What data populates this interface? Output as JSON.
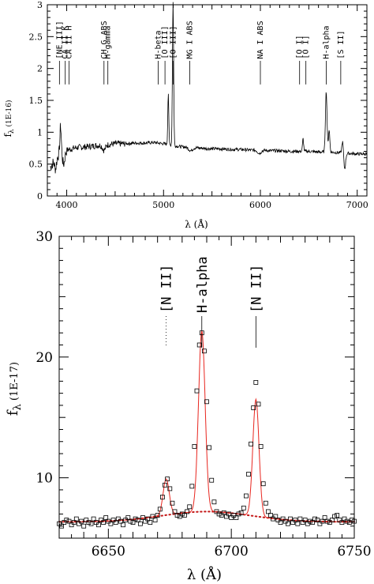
{
  "chart_data": [
    {
      "type": "line",
      "title": "",
      "xlabel": "λ (Å)",
      "ylabel": "f",
      "ylabel_sub": "λ",
      "ylabel_unit": "(1E-16)",
      "xlim": [
        3800,
        7100
      ],
      "ylim": [
        0,
        3
      ],
      "xticks": [
        4000,
        5000,
        6000,
        7000
      ],
      "yticks": [
        0,
        0.5,
        1,
        1.5,
        2,
        2.5,
        3
      ],
      "ytick_labels": [
        "0",
        "0.5",
        "1",
        "1.5",
        "2",
        "2.5",
        "3"
      ],
      "spectrum": {
        "continuum": [
          [
            3830,
            0.45
          ],
          [
            3870,
            0.55
          ],
          [
            3930,
            0.68
          ],
          [
            4000,
            0.72
          ],
          [
            4100,
            0.76
          ],
          [
            4200,
            0.77
          ],
          [
            4300,
            0.79
          ],
          [
            4400,
            0.8
          ],
          [
            4500,
            0.82
          ],
          [
            4600,
            0.82
          ],
          [
            4700,
            0.83
          ],
          [
            4800,
            0.83
          ],
          [
            4900,
            0.84
          ],
          [
            5000,
            0.82
          ],
          [
            5100,
            0.79
          ],
          [
            5200,
            0.77
          ],
          [
            5300,
            0.76
          ],
          [
            5400,
            0.75
          ],
          [
            5500,
            0.74
          ],
          [
            5600,
            0.74
          ],
          [
            5700,
            0.73
          ],
          [
            5800,
            0.73
          ],
          [
            5900,
            0.72
          ],
          [
            6000,
            0.72
          ],
          [
            6100,
            0.71
          ],
          [
            6200,
            0.71
          ],
          [
            6300,
            0.7
          ],
          [
            6400,
            0.7
          ],
          [
            6500,
            0.7
          ],
          [
            6600,
            0.69
          ],
          [
            6700,
            0.69
          ],
          [
            6800,
            0.68
          ],
          [
            6900,
            0.67
          ],
          [
            7000,
            0.66
          ],
          [
            7100,
            0.66
          ]
        ],
        "emission": [
          [
            3937,
            0.42,
            7
          ],
          [
            5049,
            0.82,
            5
          ],
          [
            5098,
            2.25,
            6
          ],
          [
            6441,
            0.2,
            6
          ],
          [
            6680,
            0.95,
            8
          ],
          [
            6710,
            0.35,
            7
          ],
          [
            6850,
            0.2,
            8
          ]
        ],
        "absorption": [
          [
            3885,
            0.15,
            10
          ],
          [
            3968,
            0.2,
            12
          ],
          [
            4385,
            0.08,
            15
          ],
          [
            5280,
            0.05,
            20
          ],
          [
            5990,
            0.05,
            18
          ],
          [
            6870,
            0.25,
            10
          ]
        ]
      },
      "line_ids": [
        {
          "label": "[NE III]",
          "x": 3925
        },
        {
          "label": "CA II K",
          "x": 3985
        },
        {
          "label": "CA II H",
          "x": 4025
        },
        {
          "label": "CH G ABS",
          "x": 4385
        },
        {
          "label": "H-gamma",
          "x": 4425
        },
        {
          "label": "H-beta",
          "x": 4945
        },
        {
          "label": "[O III]",
          "x": 5015
        },
        {
          "label": "[O III]",
          "x": 5100
        },
        {
          "label": "MG I ABS",
          "x": 5270
        },
        {
          "label": "NA I ABS",
          "x": 6000
        },
        {
          "label": "[O I]",
          "x": 6405
        },
        {
          "label": "[O I]",
          "x": 6470
        },
        {
          "label": "H-alpha",
          "x": 6680
        },
        {
          "label": "[S II]",
          "x": 6830
        }
      ]
    },
    {
      "type": "scatter",
      "title": "",
      "xlabel": "λ (Å)",
      "ylabel": "f",
      "ylabel_sub": "λ",
      "ylabel_unit": "(1E-17)",
      "xlim": [
        6630,
        6750
      ],
      "ylim": [
        5,
        30
      ],
      "xticks": [
        6650,
        6700,
        6750
      ],
      "yticks": [
        10,
        20,
        30
      ],
      "continuum_level": 6.35,
      "broad_component": {
        "center": 6690,
        "amplitude": 0.85,
        "sigma": 18
      },
      "fit_components": [
        {
          "name": "[N II]",
          "center": 6673.5,
          "amplitude": 3.0,
          "sigma": 1.25
        },
        {
          "name": "H-alpha",
          "center": 6688.0,
          "amplitude": 15.0,
          "sigma": 1.35
        },
        {
          "name": "[N II]",
          "center": 6710.0,
          "amplitude": 9.7,
          "sigma": 1.25
        }
      ],
      "points": [
        [
          6630,
          6.2
        ],
        [
          6631,
          6.0
        ],
        [
          6632,
          6.3
        ],
        [
          6633,
          6.5
        ],
        [
          6634,
          6.4
        ],
        [
          6635,
          6.1
        ],
        [
          6636,
          6.3
        ],
        [
          6637,
          6.6
        ],
        [
          6638,
          6.2
        ],
        [
          6639,
          6.4
        ],
        [
          6640,
          6.0
        ],
        [
          6641,
          6.5
        ],
        [
          6642,
          6.3
        ],
        [
          6643,
          6.2
        ],
        [
          6644,
          6.6
        ],
        [
          6645,
          6.3
        ],
        [
          6646,
          6.1
        ],
        [
          6647,
          6.5
        ],
        [
          6648,
          6.3
        ],
        [
          6649,
          6.7
        ],
        [
          6650,
          6.4
        ],
        [
          6651,
          6.2
        ],
        [
          6652,
          6.5
        ],
        [
          6653,
          6.3
        ],
        [
          6654,
          6.6
        ],
        [
          6655,
          6.4
        ],
        [
          6656,
          6.1
        ],
        [
          6657,
          6.5
        ],
        [
          6658,
          6.7
        ],
        [
          6659,
          6.4
        ],
        [
          6660,
          6.3
        ],
        [
          6661,
          6.6
        ],
        [
          6662,
          6.5
        ],
        [
          6663,
          6.2
        ],
        [
          6664,
          6.7
        ],
        [
          6665,
          6.4
        ],
        [
          6666,
          6.6
        ],
        [
          6667,
          6.3
        ],
        [
          6668,
          6.8
        ],
        [
          6669,
          6.5
        ],
        [
          6670,
          6.9
        ],
        [
          6671,
          7.4
        ],
        [
          6672,
          8.4
        ],
        [
          6673,
          9.4
        ],
        [
          6674,
          9.9
        ],
        [
          6675,
          9.1
        ],
        [
          6676,
          7.9
        ],
        [
          6677,
          7.2
        ],
        [
          6678,
          6.9
        ],
        [
          6679,
          6.8
        ],
        [
          6680,
          7.0
        ],
        [
          6681,
          6.9
        ],
        [
          6682,
          7.2
        ],
        [
          6683,
          7.6
        ],
        [
          6684,
          9.3
        ],
        [
          6685,
          12.6
        ],
        [
          6686,
          17.2
        ],
        [
          6687,
          21.0
        ],
        [
          6688,
          22.0
        ],
        [
          6689,
          20.5
        ],
        [
          6690,
          16.3
        ],
        [
          6691,
          12.5
        ],
        [
          6692,
          9.8
        ],
        [
          6693,
          8.0
        ],
        [
          6694,
          7.2
        ],
        [
          6695,
          7.0
        ],
        [
          6696,
          6.9
        ],
        [
          6697,
          7.1
        ],
        [
          6698,
          6.8
        ],
        [
          6699,
          7.0
        ],
        [
          6700,
          6.7
        ],
        [
          6701,
          6.9
        ],
        [
          6702,
          6.7
        ],
        [
          6703,
          7.0
        ],
        [
          6704,
          7.1
        ],
        [
          6705,
          7.5
        ],
        [
          6706,
          8.5
        ],
        [
          6707,
          10.3
        ],
        [
          6708,
          12.8
        ],
        [
          6709,
          15.8
        ],
        [
          6710,
          17.9
        ],
        [
          6711,
          16.1
        ],
        [
          6712,
          12.6
        ],
        [
          6713,
          9.5
        ],
        [
          6714,
          7.9
        ],
        [
          6715,
          7.2
        ],
        [
          6716,
          6.9
        ],
        [
          6717,
          6.6
        ],
        [
          6718,
          6.8
        ],
        [
          6719,
          6.5
        ],
        [
          6720,
          6.3
        ],
        [
          6721,
          6.6
        ],
        [
          6722,
          6.4
        ],
        [
          6723,
          6.2
        ],
        [
          6724,
          6.6
        ],
        [
          6725,
          6.3
        ],
        [
          6726,
          6.5
        ],
        [
          6727,
          6.2
        ],
        [
          6728,
          6.6
        ],
        [
          6729,
          6.3
        ],
        [
          6730,
          6.5
        ],
        [
          6731,
          6.2
        ],
        [
          6732,
          6.4
        ],
        [
          6733,
          6.3
        ],
        [
          6734,
          6.6
        ],
        [
          6735,
          6.5
        ],
        [
          6736,
          6.2
        ],
        [
          6737,
          6.4
        ],
        [
          6738,
          6.7
        ],
        [
          6739,
          6.4
        ],
        [
          6740,
          6.3
        ],
        [
          6741,
          6.5
        ],
        [
          6742,
          6.8
        ],
        [
          6743,
          6.9
        ],
        [
          6744,
          6.5
        ],
        [
          6745,
          6.3
        ],
        [
          6746,
          6.6
        ],
        [
          6747,
          6.4
        ],
        [
          6748,
          6.3
        ],
        [
          6749,
          6.5
        ],
        [
          6750,
          6.4
        ]
      ],
      "line_ids": [
        {
          "label": "[N II]",
          "x": 6673.5,
          "dotted": true
        },
        {
          "label": "H-alpha",
          "x": 6688.0,
          "dotted": false
        },
        {
          "label": "[N II]",
          "x": 6710.0,
          "dotted": false
        }
      ],
      "colors": {
        "fit": "#e8261f",
        "broad": "#c41818",
        "points": "#000000"
      }
    }
  ]
}
